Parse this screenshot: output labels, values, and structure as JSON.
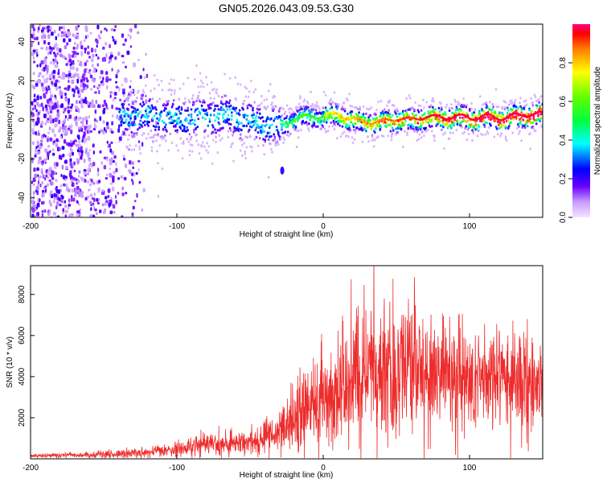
{
  "title": "GN05.2026.043.09.53.G30",
  "chart_data": [
    {
      "type": "heatmap",
      "xlabel": "Height of straight line (km)",
      "ylabel": "Frequency (Hz)",
      "xlim": [
        -200,
        150
      ],
      "ylim": [
        -50,
        49
      ],
      "x_ticks": [
        -200,
        -100,
        0,
        100
      ],
      "y_ticks": [
        -40,
        -20,
        0,
        20,
        40
      ],
      "colorbar": {
        "label": "Normalized spectral amplitude",
        "range": [
          0,
          1
        ],
        "ticks": [
          0.0,
          0.2,
          0.4,
          0.6,
          0.8
        ]
      },
      "ridge": {
        "description_points_x": [
          -135,
          -120,
          -100,
          -80,
          -65,
          -50,
          -40,
          -30,
          -20,
          -10,
          0,
          10,
          20,
          30,
          40,
          50,
          60,
          70,
          80,
          90,
          100,
          110,
          120,
          130,
          140,
          150
        ],
        "center_hz": [
          2,
          3,
          1,
          2,
          3,
          0,
          -2,
          -3,
          1,
          2,
          2,
          3,
          0,
          -1,
          -1,
          1,
          0,
          2,
          1,
          2,
          1,
          2,
          1,
          2,
          3,
          3
        ],
        "outlier": {
          "x": -28,
          "y": -26
        }
      }
    },
    {
      "type": "line",
      "xlabel": "Height of straight line (km)",
      "ylabel": "SNR (10 * v/v)",
      "xlim": [
        -200,
        150
      ],
      "ylim": [
        0,
        9400
      ],
      "x_ticks": [
        -200,
        -100,
        0,
        100
      ],
      "y_ticks": [
        2000,
        4000,
        6000,
        8000
      ],
      "series_color": "#ee2c2c",
      "envelope": {
        "x": [
          -200,
          -150,
          -120,
          -100,
          -80,
          -60,
          -40,
          -30,
          -20,
          -10,
          0,
          10,
          20,
          30,
          40,
          50,
          60,
          70,
          80,
          100,
          120,
          140,
          150
        ],
        "median": [
          150,
          200,
          300,
          450,
          700,
          800,
          1000,
          1300,
          2000,
          2400,
          2800,
          3200,
          3800,
          4200,
          4400,
          4600,
          4400,
          4100,
          4200,
          3800,
          3900,
          3700,
          3800
        ],
        "spread": [
          80,
          150,
          250,
          350,
          500,
          500,
          600,
          800,
          1500,
          1800,
          2000,
          2300,
          2500,
          2800,
          3000,
          3200,
          3000,
          2800,
          2700,
          2400,
          2200,
          2000,
          1800
        ]
      }
    }
  ]
}
